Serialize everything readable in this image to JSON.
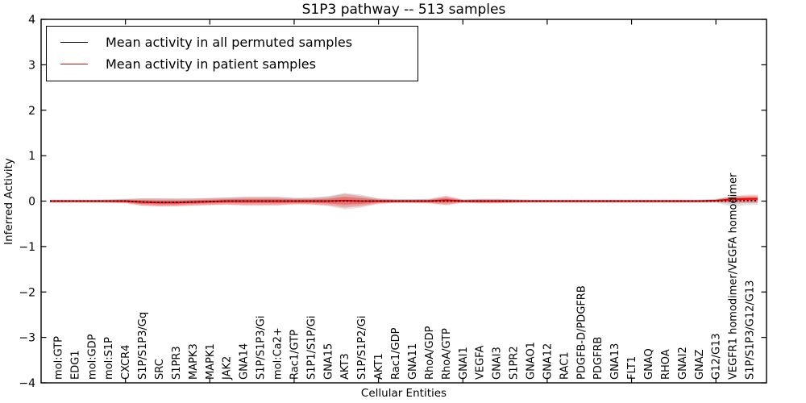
{
  "figure": {
    "background": "#ffffff",
    "frame_color": "#000000"
  },
  "chart_data": {
    "type": "line",
    "title": "S1P3 pathway -- 513 samples",
    "xlabel": "Cellular Entities",
    "ylabel": "Inferred Activity",
    "ylim": [
      -4,
      4
    ],
    "ytick_values": [
      4,
      3,
      2,
      1,
      0,
      -1,
      -2,
      -3,
      -4
    ],
    "ytick_labels": [
      "4",
      "3",
      "2",
      "1",
      "0",
      "−1",
      "−2",
      "−3",
      "−4"
    ],
    "xtick_every": 5,
    "grid": false,
    "legend_position": "upper left",
    "categories": [
      "mol:GTP",
      "EDG1",
      "mol:GDP",
      "mol:S1P",
      "CXCR4",
      "S1P/S1P3/Gq",
      "SRC",
      "S1PR3",
      "MAPK3",
      "MAPK1",
      "JAK2",
      "GNA14",
      "S1P/S1P3/Gi",
      "mol:Ca2+",
      "Rac1/GTP",
      "S1P1/S1P/Gi",
      "GNA15",
      "AKT3",
      "S1P/S1P2/Gi",
      "AKT1",
      "Rac1/GDP",
      "GNA11",
      "RhoA/GDP",
      "RhoA/GTP",
      "GNAI1",
      "VEGFA",
      "GNAI3",
      "S1PR2",
      "GNAO1",
      "GNA12",
      "RAC1",
      "PDGFB-D/PDGFRB",
      "PDGFRB",
      "GNA13",
      "FLT1",
      "GNAQ",
      "RHOA",
      "GNAI2",
      "GNAZ",
      "G12/G13",
      "VEGFR1 homodimer/VEGFA homodimer",
      "S1P/S1P3/G12/G13"
    ],
    "series": [
      {
        "name": "Mean activity in all permuted samples",
        "color": "#000000",
        "line_style": "dotted",
        "band_color_outer": "rgba(120,120,120,0.22)",
        "band_color_inner": "rgba(120,120,120,0.18)",
        "mean": [
          0,
          0,
          0,
          0,
          0,
          -0.02,
          -0.025,
          -0.025,
          -0.02,
          -0.01,
          0,
          0,
          0,
          0,
          0,
          0,
          0,
          0,
          0,
          0,
          0,
          0,
          0,
          0,
          0,
          0,
          0,
          0,
          0,
          0,
          0,
          0,
          0,
          0,
          0,
          0,
          0,
          0,
          0,
          0,
          0,
          0.01
        ],
        "band": [
          0.03,
          0.03,
          0.03,
          0.035,
          0.04,
          0.08,
          0.09,
          0.09,
          0.08,
          0.08,
          0.08,
          0.09,
          0.09,
          0.09,
          0.07,
          0.07,
          0.11,
          0.18,
          0.14,
          0.06,
          0.04,
          0.04,
          0.04,
          0.09,
          0.035,
          0.04,
          0.04,
          0.035,
          0.03,
          0.03,
          0.03,
          0.03,
          0.03,
          0.03,
          0.03,
          0.03,
          0.03,
          0.03,
          0.03,
          0.035,
          0.12,
          0.09
        ]
      },
      {
        "name": "Mean activity in patient samples",
        "color": "#ff0000",
        "line_style": "solid",
        "band_color_outer": "rgba(255,20,20,0.25)",
        "band_color_inner": "rgba(255,20,20,0.30)",
        "mean": [
          0,
          0,
          0,
          0,
          0,
          -0.02,
          -0.03,
          -0.03,
          -0.02,
          -0.01,
          0,
          0,
          0,
          0,
          0,
          0,
          0,
          0.01,
          0,
          0,
          0,
          0,
          0,
          0.02,
          0,
          0,
          0,
          0,
          0,
          0,
          0,
          0,
          0,
          0,
          0,
          0,
          0,
          0,
          0,
          0.01,
          0.04,
          0.05
        ],
        "band": [
          0.03,
          0.03,
          0.03,
          0.035,
          0.05,
          0.08,
          0.085,
          0.08,
          0.075,
          0.075,
          0.075,
          0.09,
          0.09,
          0.09,
          0.07,
          0.075,
          0.09,
          0.15,
          0.11,
          0.055,
          0.04,
          0.04,
          0.05,
          0.1,
          0.035,
          0.05,
          0.05,
          0.04,
          0.03,
          0.03,
          0.03,
          0.03,
          0.03,
          0.03,
          0.03,
          0.03,
          0.03,
          0.03,
          0.03,
          0.035,
          0.07,
          0.09
        ]
      }
    ]
  }
}
